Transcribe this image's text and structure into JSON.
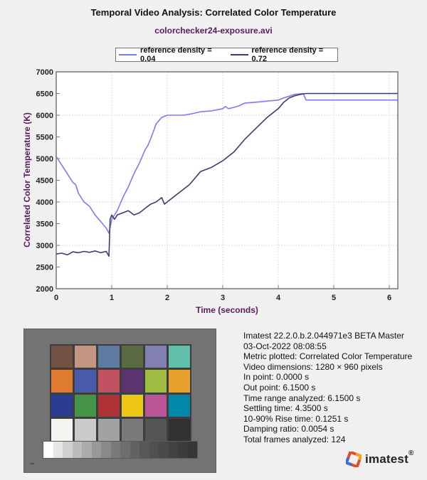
{
  "header": {
    "title": "Temporal Video Analysis: Correlated Color Temperature",
    "subtitle": "colorchecker24-exposure.avi"
  },
  "legend": {
    "items": [
      {
        "label": "reference density = 0.04",
        "color": "#7b7cf0"
      },
      {
        "label": "reference density = 0.72",
        "color": "#3c3d6e"
      }
    ]
  },
  "axes": {
    "xlabel": "Time (seconds)",
    "ylabel": "Correlated Color Temperature (K)",
    "xticks": [
      "0",
      "1",
      "2",
      "3",
      "4",
      "5",
      "6"
    ],
    "yticks": [
      "2000",
      "2500",
      "3000",
      "3500",
      "4000",
      "4500",
      "5000",
      "5500",
      "6000",
      "6500",
      "7000"
    ]
  },
  "chart_data": {
    "type": "line",
    "title": "Temporal Video Analysis: Correlated Color Temperature",
    "subtitle": "colorchecker24-exposure.avi",
    "xlabel": "Time (seconds)",
    "ylabel": "Correlated Color Temperature (K)",
    "xlim": [
      0,
      6.15
    ],
    "ylim": [
      2000,
      7000
    ],
    "grid": true,
    "legend_position": "top",
    "series": [
      {
        "name": "reference density = 0.04",
        "color": "#7b7cf0",
        "x": [
          0,
          0.1,
          0.2,
          0.3,
          0.35,
          0.4,
          0.5,
          0.6,
          0.65,
          0.7,
          0.8,
          0.9,
          0.95,
          1.0,
          1.1,
          1.2,
          1.3,
          1.4,
          1.5,
          1.6,
          1.65,
          1.7,
          1.8,
          1.9,
          2.0,
          2.1,
          2.3,
          2.5,
          2.6,
          2.8,
          3.0,
          3.05,
          3.1,
          3.2,
          3.3,
          3.4,
          3.6,
          4.0,
          4.1,
          4.3,
          4.45,
          4.5,
          4.6,
          5.0,
          6.15
        ],
        "y": [
          5050,
          4850,
          4650,
          4450,
          4400,
          4200,
          4000,
          3900,
          3800,
          3700,
          3550,
          3400,
          3280,
          3600,
          3800,
          4100,
          4350,
          4650,
          4900,
          5200,
          5300,
          5450,
          5800,
          5950,
          6000,
          6000,
          6000,
          6050,
          6080,
          6100,
          6150,
          6200,
          6150,
          6180,
          6220,
          6280,
          6300,
          6350,
          6400,
          6480,
          6500,
          6350,
          6350,
          6350,
          6350
        ]
      },
      {
        "name": "reference density = 0.72",
        "color": "#3c3d6e",
        "x": [
          0,
          0.1,
          0.2,
          0.3,
          0.4,
          0.5,
          0.6,
          0.7,
          0.8,
          0.9,
          0.95,
          0.97,
          1.0,
          1.05,
          1.1,
          1.2,
          1.3,
          1.4,
          1.5,
          1.6,
          1.7,
          1.8,
          1.9,
          1.95,
          2.0,
          2.2,
          2.4,
          2.5,
          2.6,
          2.8,
          3.0,
          3.2,
          3.4,
          3.6,
          3.8,
          4.0,
          4.1,
          4.2,
          4.3,
          4.4,
          4.5,
          6.15
        ],
        "y": [
          2800,
          2820,
          2780,
          2850,
          2830,
          2860,
          2840,
          2870,
          2830,
          2860,
          2750,
          3600,
          3700,
          3600,
          3700,
          3750,
          3800,
          3700,
          3750,
          3850,
          3950,
          4000,
          4100,
          3950,
          4000,
          4200,
          4400,
          4550,
          4700,
          4800,
          4950,
          5150,
          5450,
          5700,
          5950,
          6150,
          6300,
          6400,
          6450,
          6480,
          6500,
          6500
        ]
      }
    ]
  },
  "colorchecker": {
    "patches": [
      "#735244",
      "#c29682",
      "#5d7aa0",
      "#5b6b41",
      "#8180b0",
      "#63bfaa",
      "#e07c32",
      "#4a5aaa",
      "#c25262",
      "#5d3470",
      "#a0bb42",
      "#e6a22c",
      "#2c3c92",
      "#459448",
      "#af3236",
      "#ecc613",
      "#bb5598",
      "#0088a8",
      "#f4f4f1",
      "#c9caca",
      "#a1a2a1",
      "#7a7a7a",
      "#545555",
      "#323233"
    ],
    "gray_steps": [
      "#ffffff",
      "#e6e6e6",
      "#d0d0d0",
      "#bcbcbc",
      "#ababab",
      "#999999",
      "#898989",
      "#7a7a7a",
      "#6e6e6e",
      "#626262",
      "#585858",
      "#505050",
      "#4a4a4a",
      "#424242",
      "#3c3c3c",
      "#363636"
    ]
  },
  "info": {
    "lines": [
      "Imatest 22.2.0.b.2.044971e3 BETA Master",
      "03-Oct-2022 08:08:55",
      "Metric plotted: Correlated Color Temperature",
      "Video dimensions: 1280 × 960 pixels",
      "In point: 0.0000 s",
      "Out point: 6.1500 s",
      "Time range analyzed: 6.1500 s",
      "Settling time: 4.3500 s",
      "10-90% Rise time: 0.1251 s",
      "Damping ratio: 0.0054 s",
      "Total frames analyzed: 124"
    ]
  },
  "logo": {
    "text": "imatest",
    "mark": "®"
  }
}
